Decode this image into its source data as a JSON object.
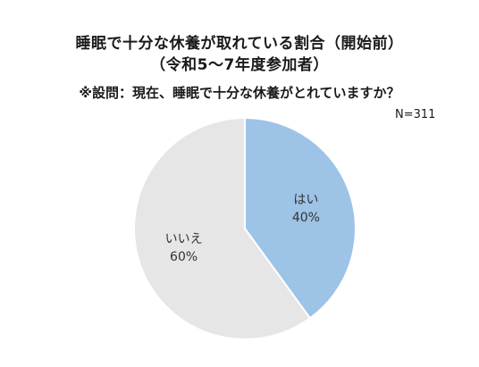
{
  "title_line1": "睡眠で十分な休養が取れている割合（開始前）",
  "title_line2": "（令和5～7年度参加者）",
  "subtitle": "※設問：現在、睡眠で十分な休養がとれていますか？",
  "n_label": "N=311",
  "chart_data": {
    "type": "pie",
    "categories": [
      "はい",
      "いいえ"
    ],
    "values": [
      40,
      60
    ],
    "value_labels": [
      "40%",
      "60%"
    ],
    "colors": [
      "#9dc3e6",
      "#e6e6e6"
    ],
    "start_angle": "12 o'clock",
    "direction": "clockwise"
  }
}
